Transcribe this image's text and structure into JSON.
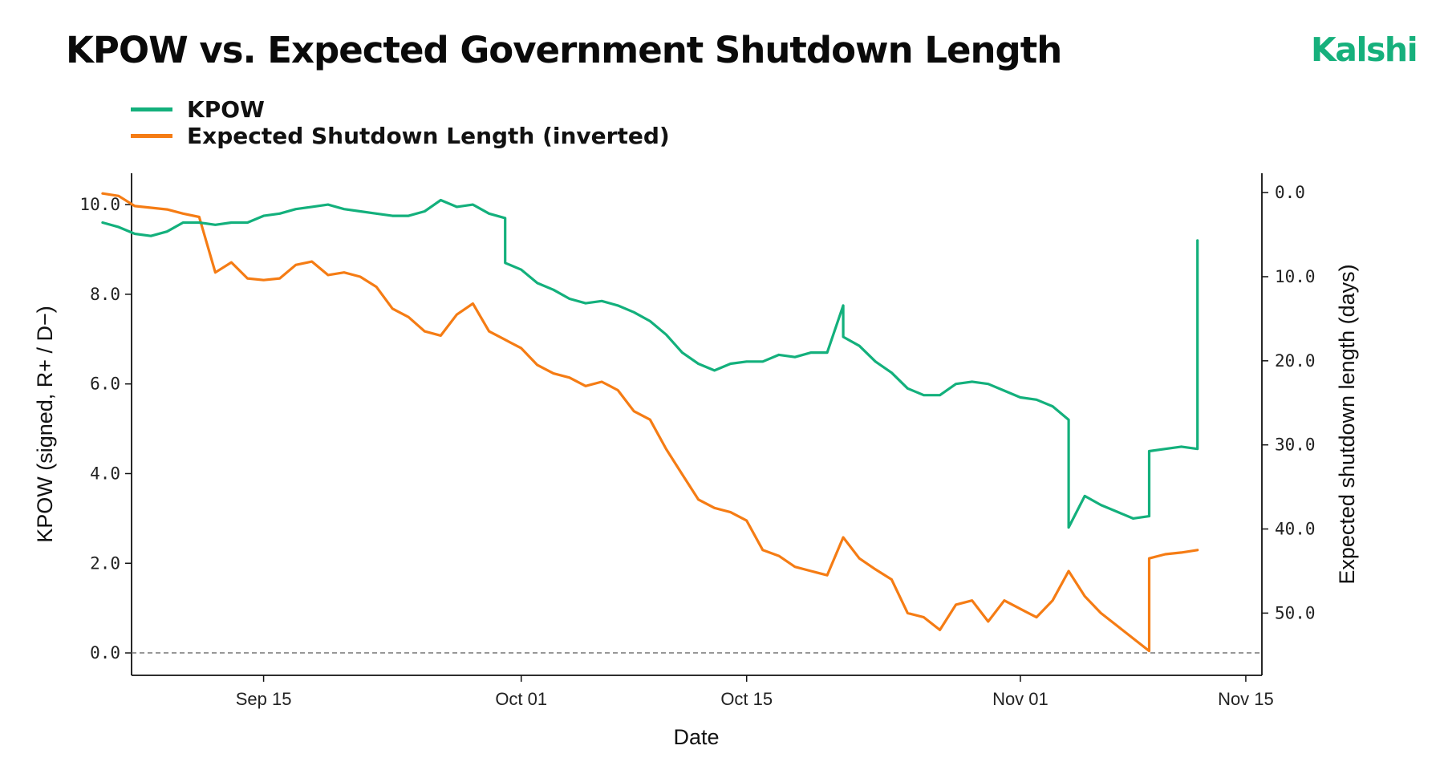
{
  "title": "KPOW vs. Expected Government Shutdown Length",
  "brand": {
    "name": "Kalshi",
    "color": "#16b07c"
  },
  "chart_data": {
    "type": "line",
    "title": "KPOW vs. Expected Government Shutdown Length",
    "xlabel": "Date",
    "ylabel_left": "KPOW (signed, R+ / D−)",
    "ylabel_right": "Expected shutdown length (days)",
    "x_ticks": [
      {
        "label": "Sep 15",
        "day": 15
      },
      {
        "label": "Oct 01",
        "day": 31
      },
      {
        "label": "Oct 15",
        "day": 45
      },
      {
        "label": "Nov 01",
        "day": 62
      },
      {
        "label": "Nov 15",
        "day": 76
      }
    ],
    "xlim_days_from_sep_1": [
      6.8,
      77
    ],
    "y_left_ticks": [
      "0.0",
      "2.0",
      "4.0",
      "6.0",
      "8.0",
      "10.0"
    ],
    "y_left_lim": [
      -0.5,
      10.7
    ],
    "y_right_ticks": [
      "0.0",
      "10.0",
      "20.0",
      "30.0",
      "40.0",
      "50.0"
    ],
    "y_right_lim_inverted": [
      -2.3,
      57.4
    ],
    "reference_line": {
      "y": 0,
      "style": "dashed"
    },
    "legend_position": "top-left",
    "series": [
      {
        "name": "KPOW",
        "axis": "left",
        "color": "#13b07c",
        "points": [
          [
            "2025-09-06",
            9.6
          ],
          [
            "2025-09-07",
            9.5
          ],
          [
            "2025-09-08",
            9.35
          ],
          [
            "2025-09-09",
            9.3
          ],
          [
            "2025-09-10",
            9.4
          ],
          [
            "2025-09-11",
            9.6
          ],
          [
            "2025-09-12",
            9.6
          ],
          [
            "2025-09-13",
            9.55
          ],
          [
            "2025-09-14",
            9.6
          ],
          [
            "2025-09-15",
            9.6
          ],
          [
            "2025-09-16",
            9.75
          ],
          [
            "2025-09-17",
            9.8
          ],
          [
            "2025-09-18",
            9.9
          ],
          [
            "2025-09-19",
            9.95
          ],
          [
            "2025-09-20",
            10.0
          ],
          [
            "2025-09-21",
            9.9
          ],
          [
            "2025-09-22",
            9.85
          ],
          [
            "2025-09-23",
            9.8
          ],
          [
            "2025-09-24",
            9.75
          ],
          [
            "2025-09-25",
            9.75
          ],
          [
            "2025-09-26",
            9.85
          ],
          [
            "2025-09-27",
            10.1
          ],
          [
            "2025-09-28",
            9.95
          ],
          [
            "2025-09-29",
            10.0
          ],
          [
            "2025-09-30",
            9.8
          ],
          [
            "2025-10-01",
            9.7
          ],
          [
            "2025-10-01",
            8.7
          ],
          [
            "2025-10-02",
            8.55
          ],
          [
            "2025-10-03",
            8.25
          ],
          [
            "2025-10-04",
            8.1
          ],
          [
            "2025-10-05",
            7.9
          ],
          [
            "2025-10-06",
            7.8
          ],
          [
            "2025-10-07",
            7.85
          ],
          [
            "2025-10-08",
            7.75
          ],
          [
            "2025-10-09",
            7.6
          ],
          [
            "2025-10-10",
            7.4
          ],
          [
            "2025-10-11",
            7.1
          ],
          [
            "2025-10-12",
            6.7
          ],
          [
            "2025-10-13",
            6.45
          ],
          [
            "2025-10-14",
            6.3
          ],
          [
            "2025-10-15",
            6.45
          ],
          [
            "2025-10-16",
            6.5
          ],
          [
            "2025-10-17",
            6.5
          ],
          [
            "2025-10-18",
            6.65
          ],
          [
            "2025-10-19",
            6.6
          ],
          [
            "2025-10-20",
            6.7
          ],
          [
            "2025-10-21",
            6.7
          ],
          [
            "2025-10-22",
            7.75
          ],
          [
            "2025-10-22",
            7.05
          ],
          [
            "2025-10-23",
            6.85
          ],
          [
            "2025-10-24",
            6.5
          ],
          [
            "2025-10-25",
            6.25
          ],
          [
            "2025-10-26",
            5.9
          ],
          [
            "2025-10-27",
            5.75
          ],
          [
            "2025-10-28",
            5.75
          ],
          [
            "2025-10-29",
            6.0
          ],
          [
            "2025-10-30",
            6.05
          ],
          [
            "2025-10-31",
            6.0
          ],
          [
            "2025-11-01",
            5.85
          ],
          [
            "2025-11-02",
            5.7
          ],
          [
            "2025-11-03",
            5.65
          ],
          [
            "2025-11-04",
            5.5
          ],
          [
            "2025-11-05",
            5.2
          ],
          [
            "2025-11-05",
            2.8
          ],
          [
            "2025-11-06",
            3.5
          ],
          [
            "2025-11-07",
            3.3
          ],
          [
            "2025-11-08",
            3.15
          ],
          [
            "2025-11-09",
            3.0
          ],
          [
            "2025-11-10",
            3.05
          ],
          [
            "2025-11-10",
            4.5
          ],
          [
            "2025-11-11",
            4.55
          ],
          [
            "2025-11-12",
            4.6
          ],
          [
            "2025-11-13",
            4.55
          ],
          [
            "2025-11-13",
            9.2
          ]
        ]
      },
      {
        "name": "Expected Shutdown Length (inverted)",
        "axis": "right",
        "color": "#f57c14",
        "points": [
          [
            "2025-09-06",
            0.1
          ],
          [
            "2025-09-07",
            0.4
          ],
          [
            "2025-09-08",
            1.6
          ],
          [
            "2025-09-09",
            1.8
          ],
          [
            "2025-09-10",
            2.0
          ],
          [
            "2025-09-11",
            2.5
          ],
          [
            "2025-09-12",
            2.9
          ],
          [
            "2025-09-13",
            9.5
          ],
          [
            "2025-09-14",
            8.3
          ],
          [
            "2025-09-15",
            10.2
          ],
          [
            "2025-09-16",
            10.4
          ],
          [
            "2025-09-17",
            10.2
          ],
          [
            "2025-09-18",
            8.6
          ],
          [
            "2025-09-19",
            8.2
          ],
          [
            "2025-09-20",
            9.8
          ],
          [
            "2025-09-21",
            9.5
          ],
          [
            "2025-09-22",
            10.0
          ],
          [
            "2025-09-23",
            11.2
          ],
          [
            "2025-09-24",
            13.8
          ],
          [
            "2025-09-25",
            14.8
          ],
          [
            "2025-09-26",
            16.5
          ],
          [
            "2025-09-27",
            17.0
          ],
          [
            "2025-09-28",
            14.5
          ],
          [
            "2025-09-29",
            13.2
          ],
          [
            "2025-09-30",
            16.5
          ],
          [
            "2025-10-01",
            17.5
          ],
          [
            "2025-10-02",
            18.5
          ],
          [
            "2025-10-03",
            20.5
          ],
          [
            "2025-10-04",
            21.5
          ],
          [
            "2025-10-05",
            22.0
          ],
          [
            "2025-10-06",
            23.0
          ],
          [
            "2025-10-07",
            22.5
          ],
          [
            "2025-10-08",
            23.5
          ],
          [
            "2025-10-09",
            26.0
          ],
          [
            "2025-10-10",
            27.0
          ],
          [
            "2025-10-11",
            30.5
          ],
          [
            "2025-10-12",
            33.5
          ],
          [
            "2025-10-13",
            36.5
          ],
          [
            "2025-10-14",
            37.5
          ],
          [
            "2025-10-15",
            38.0
          ],
          [
            "2025-10-16",
            39.0
          ],
          [
            "2025-10-17",
            42.5
          ],
          [
            "2025-10-18",
            43.2
          ],
          [
            "2025-10-19",
            44.5
          ],
          [
            "2025-10-20",
            45.0
          ],
          [
            "2025-10-21",
            45.5
          ],
          [
            "2025-10-22",
            41.0
          ],
          [
            "2025-10-23",
            43.5
          ],
          [
            "2025-10-24",
            44.8
          ],
          [
            "2025-10-25",
            46.0
          ],
          [
            "2025-10-26",
            50.0
          ],
          [
            "2025-10-27",
            50.5
          ],
          [
            "2025-10-28",
            52.0
          ],
          [
            "2025-10-29",
            49.0
          ],
          [
            "2025-10-30",
            48.5
          ],
          [
            "2025-10-31",
            51.0
          ],
          [
            "2025-11-01",
            48.5
          ],
          [
            "2025-11-02",
            49.5
          ],
          [
            "2025-11-03",
            50.5
          ],
          [
            "2025-11-04",
            48.5
          ],
          [
            "2025-11-05",
            45.0
          ],
          [
            "2025-11-06",
            48.0
          ],
          [
            "2025-11-07",
            50.0
          ],
          [
            "2025-11-08",
            51.5
          ],
          [
            "2025-11-09",
            53.0
          ],
          [
            "2025-11-10",
            54.5
          ],
          [
            "2025-11-10",
            43.5
          ],
          [
            "2025-11-11",
            43.0
          ],
          [
            "2025-11-12",
            42.8
          ],
          [
            "2025-11-13",
            42.5
          ]
        ]
      }
    ]
  }
}
